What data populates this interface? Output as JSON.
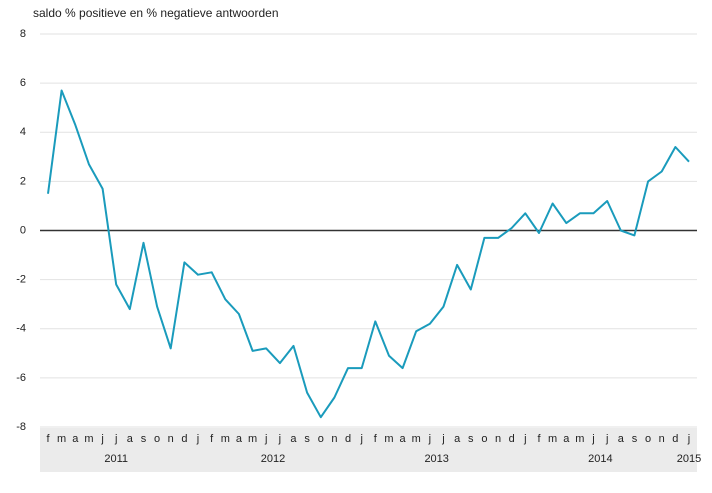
{
  "chart_data": {
    "type": "line",
    "title": "saldo % positieve en % negatieve antwoorden",
    "year_groups": [
      {
        "year": "2011",
        "months": [
          "f",
          "m",
          "a",
          "m",
          "j",
          "j",
          "a",
          "s",
          "o",
          "n",
          "d"
        ]
      },
      {
        "year": "2012",
        "months": [
          "j",
          "f",
          "m",
          "a",
          "m",
          "j",
          "j",
          "a",
          "s",
          "o",
          "n",
          "d"
        ]
      },
      {
        "year": "2013",
        "months": [
          "j",
          "f",
          "m",
          "a",
          "m",
          "j",
          "j",
          "a",
          "s",
          "o",
          "n",
          "d"
        ]
      },
      {
        "year": "2014",
        "months": [
          "j",
          "f",
          "m",
          "a",
          "m",
          "j",
          "j",
          "a",
          "s",
          "o",
          "n",
          "d"
        ]
      },
      {
        "year": "2015",
        "months": [
          "j"
        ]
      }
    ],
    "values": [
      1.5,
      5.7,
      4.3,
      2.7,
      1.7,
      -2.2,
      -3.2,
      -0.5,
      -3.1,
      -4.8,
      -1.3,
      -1.8,
      -1.7,
      -2.8,
      -3.4,
      -4.9,
      -4.8,
      -5.4,
      -4.7,
      -6.6,
      -7.6,
      -6.8,
      -5.6,
      -5.6,
      -3.7,
      -5.1,
      -5.6,
      -4.1,
      -3.8,
      -3.1,
      -1.4,
      -2.4,
      -0.3,
      -0.3,
      0.1,
      0.7,
      -0.1,
      1.1,
      0.3,
      0.7,
      0.7,
      1.2,
      0.0,
      -0.2,
      2.0,
      2.4,
      3.4,
      2.8
    ],
    "color": "#1a9bbc",
    "ylim": [
      -8,
      8
    ],
    "yticks": [
      -8,
      -6,
      -4,
      -2,
      0,
      2,
      4,
      6,
      8
    ],
    "grid": true
  }
}
